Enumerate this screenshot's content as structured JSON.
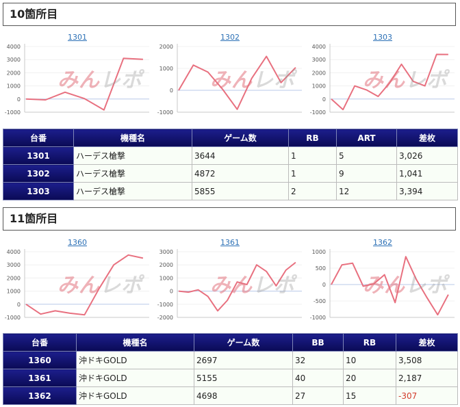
{
  "sections": [
    {
      "title": "10箇所目",
      "charts": [
        {
          "id": "1301",
          "yticks": [
            "4000",
            "3000",
            "2000",
            "1000",
            "0",
            "-1000"
          ],
          "ymin": -1000,
          "ymax": 4000,
          "points": [
            0,
            -60,
            520,
            30,
            -830,
            3100,
            3026
          ]
        },
        {
          "id": "1302",
          "yticks": [
            "2000",
            "1000",
            "0",
            "-1000"
          ],
          "ymin": -1000,
          "ymax": 2000,
          "points": [
            0,
            1150,
            830,
            50,
            -870,
            550,
            1550,
            350,
            1041
          ]
        },
        {
          "id": "1303",
          "yticks": [
            "4000",
            "3000",
            "2000",
            "1000",
            "0",
            "-1000"
          ],
          "ymin": -1000,
          "ymax": 4000,
          "points": [
            0,
            -800,
            1000,
            700,
            200,
            1250,
            2650,
            1350,
            1000,
            3400,
            3394
          ]
        }
      ],
      "table": {
        "headers": [
          "台番",
          "機種名",
          "ゲーム数",
          "RB",
          "ART",
          "差枚"
        ],
        "rows": [
          [
            "1301",
            "ハーデス槍撃",
            "3644",
            "1",
            "5",
            "3,026"
          ],
          [
            "1302",
            "ハーデス槍撃",
            "4872",
            "1",
            "9",
            "1,041"
          ],
          [
            "1303",
            "ハーデス槍撃",
            "5855",
            "2",
            "12",
            "3,394"
          ]
        ]
      }
    },
    {
      "title": "11箇所目",
      "charts": [
        {
          "id": "1360",
          "yticks": [
            "4000",
            "3000",
            "2000",
            "1000",
            "0",
            "-1000"
          ],
          "ymin": -1000,
          "ymax": 4000,
          "points": [
            0,
            -750,
            -500,
            -680,
            -800,
            1200,
            3000,
            3750,
            3508
          ]
        },
        {
          "id": "1361",
          "yticks": [
            "3000",
            "2000",
            "1000",
            "0",
            "-1000",
            "-2000"
          ],
          "ymin": -2000,
          "ymax": 3000,
          "points": [
            0,
            -80,
            100,
            -400,
            -1500,
            -700,
            700,
            500,
            2000,
            1500,
            400,
            1600,
            2187
          ]
        },
        {
          "id": "1362",
          "yticks": [
            "1000",
            "500",
            "0",
            "-500",
            "-1000"
          ],
          "ymin": -1000,
          "ymax": 1000,
          "points": [
            0,
            600,
            650,
            -50,
            20,
            300,
            -550,
            850,
            150,
            -400,
            -920,
            -307
          ]
        }
      ],
      "table": {
        "headers": [
          "台番",
          "機種名",
          "ゲーム数",
          "BB",
          "RB",
          "差枚"
        ],
        "rows": [
          [
            "1360",
            "沖ドキGOLD",
            "2697",
            "32",
            "10",
            "3,508"
          ],
          [
            "1361",
            "沖ドキGOLD",
            "5155",
            "40",
            "20",
            "2,187"
          ],
          [
            "1362",
            "沖ドキGOLD",
            "4698",
            "27",
            "15",
            "-307"
          ]
        ]
      }
    }
  ],
  "watermark": {
    "part1": "みん",
    "part2": "レポ"
  },
  "colors": {
    "line": "#e8707f",
    "axis": "#c8c8c8",
    "link": "#2a6fb5",
    "negative": "#d23a2a",
    "header_bg": "#0e0f6a"
  }
}
